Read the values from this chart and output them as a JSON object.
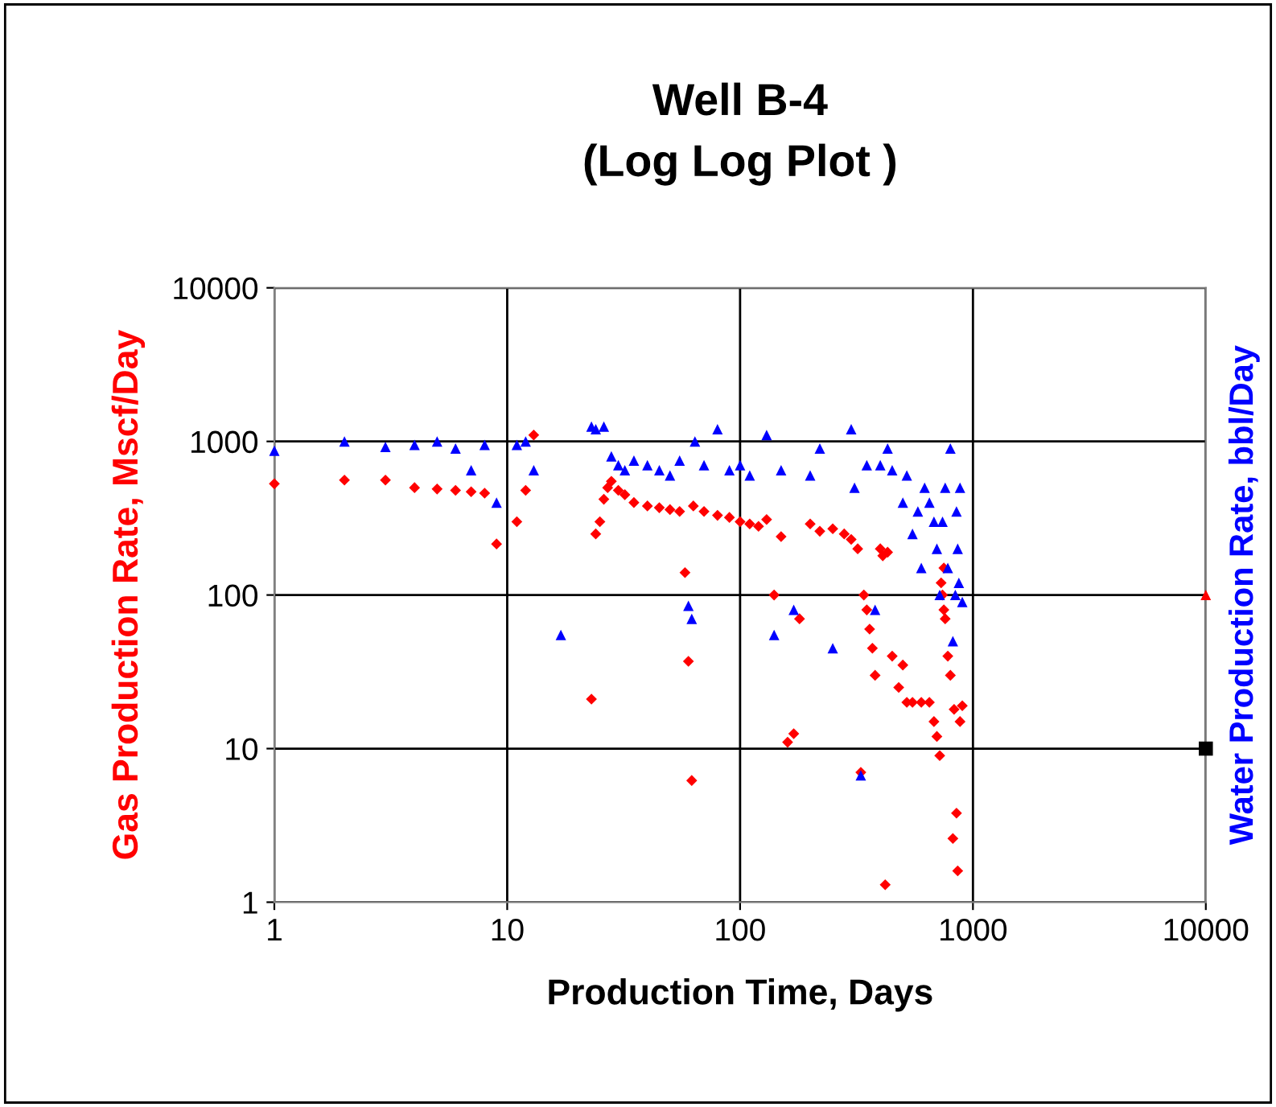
{
  "chart_data": {
    "type": "scatter",
    "title": "Well B-4\n(Log Log Plot )",
    "xlabel": "Production Time, Days",
    "ylabel": "Gas Production Rate, Mscf/Day",
    "y2label": "Water Production Rate, bbl/Day",
    "log": "xy",
    "xlim": [
      1,
      10000
    ],
    "ylim": [
      1,
      10000
    ],
    "xticks": [
      1,
      10,
      100,
      1000,
      10000
    ],
    "yticks": [
      1,
      10,
      100,
      1000,
      10000
    ],
    "grid": true,
    "series": [
      {
        "color": "#ff0000",
        "marker": "diamond",
        "x": [
          1,
          2,
          3,
          4,
          5,
          6,
          7,
          8,
          9,
          11,
          12,
          13,
          23,
          24,
          25,
          26,
          27,
          28,
          30,
          32,
          35,
          40,
          45,
          50,
          55,
          58,
          60,
          62,
          63,
          70,
          80,
          90,
          100,
          110,
          120,
          130,
          140,
          150,
          160,
          170,
          180,
          200,
          220,
          250,
          280,
          300,
          320,
          330,
          340,
          350,
          360,
          370,
          380,
          400,
          410,
          420,
          430,
          450,
          480,
          500,
          520,
          550,
          600,
          650,
          680,
          700,
          720,
          730,
          740,
          750,
          750,
          760,
          780,
          800,
          820,
          830,
          850,
          860,
          880,
          900
        ],
        "values": [
          530,
          560,
          560,
          500,
          490,
          480,
          470,
          460,
          215,
          300,
          480,
          1100,
          21,
          250,
          300,
          420,
          500,
          550,
          480,
          450,
          400,
          380,
          370,
          360,
          350,
          140,
          37,
          6.2,
          380,
          350,
          330,
          320,
          300,
          290,
          280,
          310,
          100,
          240,
          11,
          12.5,
          70,
          290,
          260,
          270,
          250,
          230,
          200,
          7,
          100,
          80,
          60,
          45,
          30,
          200,
          180,
          1.3,
          190,
          40,
          25,
          35,
          20,
          20,
          20,
          20,
          15,
          12,
          9,
          120,
          100,
          80,
          150,
          70,
          40,
          30,
          2.6,
          18,
          3.8,
          1.6,
          15,
          19
        ]
      },
      {
        "color": "#0000ff",
        "marker": "triangle",
        "x": [
          1,
          2,
          3,
          4,
          5,
          6,
          7,
          8,
          9,
          11,
          12,
          13,
          17,
          23,
          24,
          26,
          28,
          30,
          32,
          35,
          40,
          45,
          50,
          55,
          60,
          62,
          64,
          70,
          80,
          90,
          100,
          110,
          130,
          140,
          150,
          170,
          200,
          220,
          250,
          300,
          310,
          330,
          350,
          380,
          400,
          430,
          450,
          500,
          520,
          550,
          580,
          600,
          620,
          650,
          680,
          700,
          720,
          740,
          760,
          780,
          800,
          820,
          840,
          850,
          860,
          870,
          880,
          900
        ],
        "values": [
          870,
          1000,
          920,
          950,
          1000,
          900,
          650,
          950,
          400,
          950,
          1000,
          650,
          55,
          1250,
          1200,
          1250,
          800,
          700,
          650,
          750,
          700,
          650,
          600,
          750,
          85,
          70,
          1000,
          700,
          1200,
          650,
          700,
          600,
          1100,
          55,
          650,
          80,
          600,
          900,
          45,
          1200,
          500,
          6.7,
          700,
          80,
          700,
          900,
          650,
          400,
          600,
          250,
          350,
          150,
          500,
          400,
          300,
          200,
          100,
          300,
          500,
          150,
          900,
          50,
          100,
          350,
          200,
          120,
          500,
          90
        ]
      },
      {
        "color": "#ff0000",
        "marker": "triangle",
        "x": [
          10000
        ],
        "values": [
          100
        ]
      },
      {
        "color": "#000000",
        "marker": "square",
        "x": [
          10000
        ],
        "values": [
          10
        ]
      }
    ]
  }
}
